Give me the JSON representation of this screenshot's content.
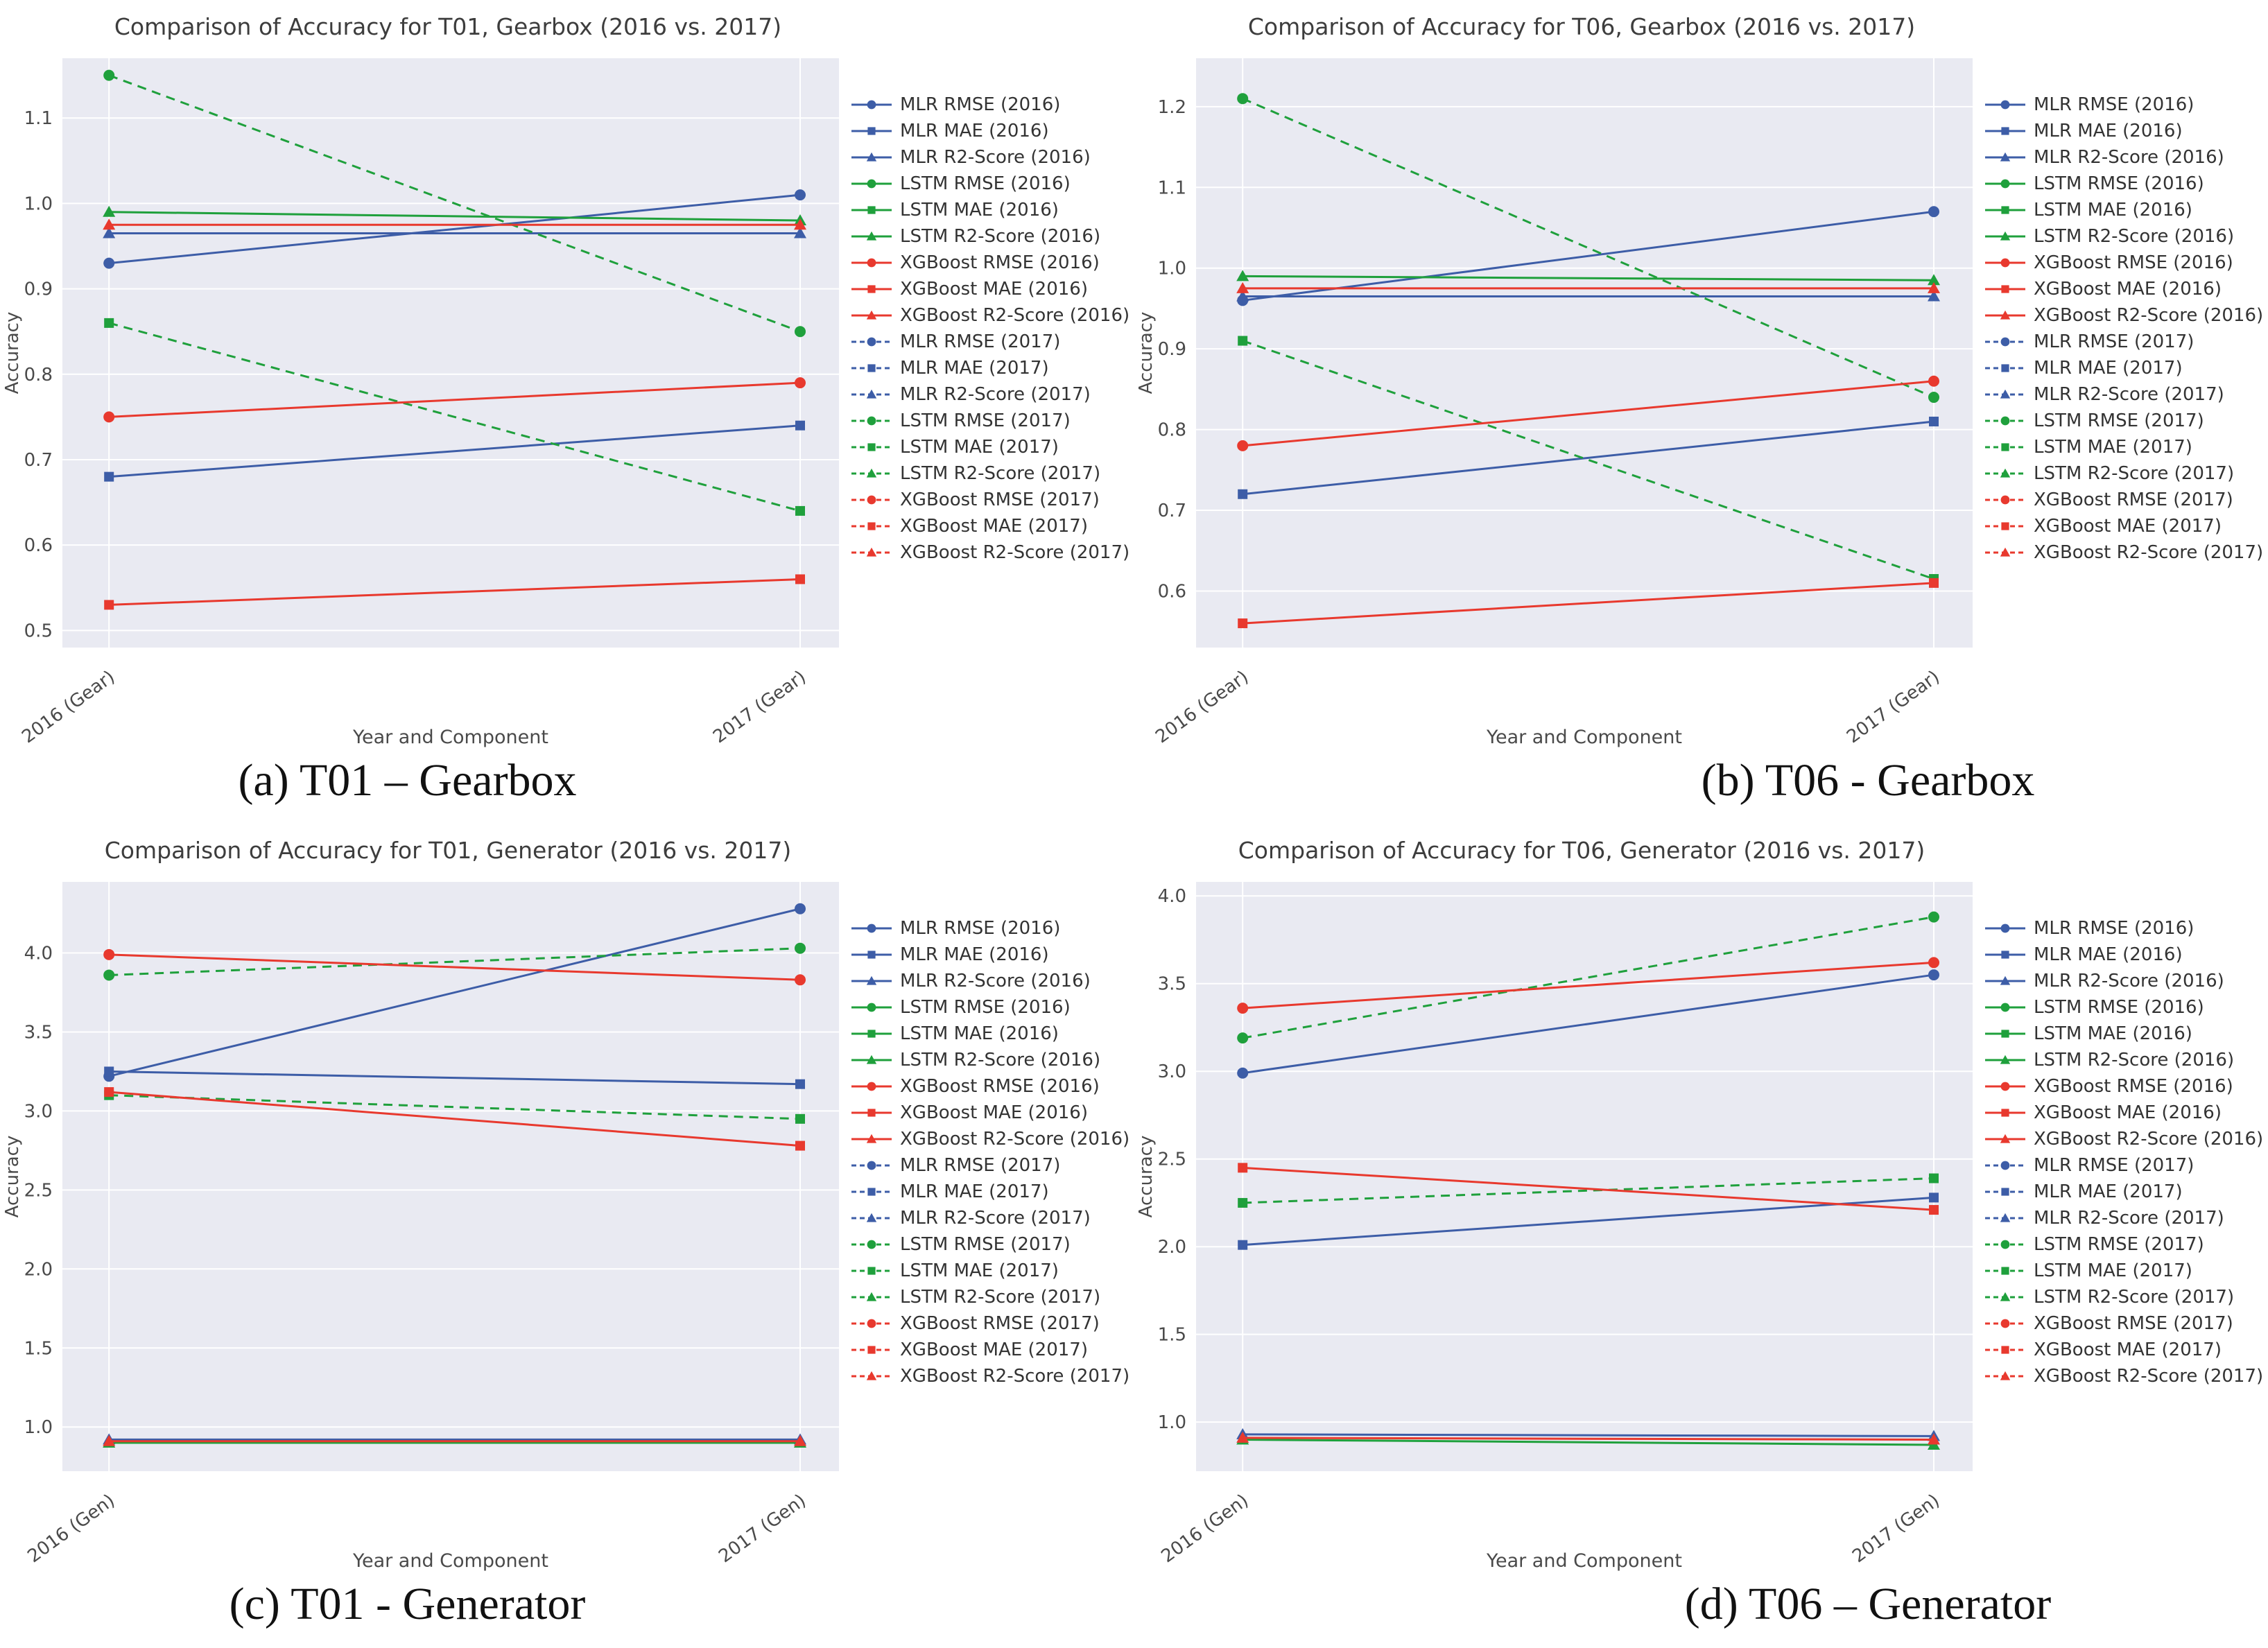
{
  "colors": {
    "mlr_blue": "#3d5da7",
    "lstm_green": "#1fa03c",
    "xgboost_red": "#e8392e",
    "plot_bg": "#e9eaf2",
    "grid": "#ffffff",
    "tick": "#4a4a4a",
    "title": "#3d3d3d"
  },
  "legend_entries": [
    {
      "label": "MLR RMSE (2016)",
      "color": "#3d5da7",
      "marker": "circle",
      "dash": false
    },
    {
      "label": "MLR MAE (2016)",
      "color": "#3d5da7",
      "marker": "square",
      "dash": false
    },
    {
      "label": "MLR R2-Score (2016)",
      "color": "#3d5da7",
      "marker": "triangle",
      "dash": false
    },
    {
      "label": "LSTM RMSE (2016)",
      "color": "#1fa03c",
      "marker": "circle",
      "dash": false
    },
    {
      "label": "LSTM MAE (2016)",
      "color": "#1fa03c",
      "marker": "square",
      "dash": false
    },
    {
      "label": "LSTM R2-Score (2016)",
      "color": "#1fa03c",
      "marker": "triangle",
      "dash": false
    },
    {
      "label": "XGBoost RMSE (2016)",
      "color": "#e8392e",
      "marker": "circle",
      "dash": false
    },
    {
      "label": "XGBoost MAE (2016)",
      "color": "#e8392e",
      "marker": "square",
      "dash": false
    },
    {
      "label": "XGBoost R2-Score (2016)",
      "color": "#e8392e",
      "marker": "triangle",
      "dash": false
    },
    {
      "label": "MLR RMSE (2017)",
      "color": "#3d5da7",
      "marker": "circle",
      "dash": true
    },
    {
      "label": "MLR MAE (2017)",
      "color": "#3d5da7",
      "marker": "square",
      "dash": true
    },
    {
      "label": "MLR R2-Score (2017)",
      "color": "#3d5da7",
      "marker": "triangle",
      "dash": true
    },
    {
      "label": "LSTM RMSE (2017)",
      "color": "#1fa03c",
      "marker": "circle",
      "dash": true
    },
    {
      "label": "LSTM MAE (2017)",
      "color": "#1fa03c",
      "marker": "square",
      "dash": true
    },
    {
      "label": "LSTM R2-Score (2017)",
      "color": "#1fa03c",
      "marker": "triangle",
      "dash": true
    },
    {
      "label": "XGBoost RMSE (2017)",
      "color": "#e8392e",
      "marker": "circle",
      "dash": true
    },
    {
      "label": "XGBoost MAE (2017)",
      "color": "#e8392e",
      "marker": "square",
      "dash": true
    },
    {
      "label": "XGBoost R2-Score (2017)",
      "color": "#e8392e",
      "marker": "triangle",
      "dash": true
    }
  ],
  "chart_data": [
    {
      "id": "a",
      "type": "line",
      "title": "Comparison of Accuracy for T01, Gearbox (2016 vs. 2017)",
      "caption": "(a) T01 – Gearbox",
      "xlabel": "Year and Component",
      "ylabel": "Accuracy",
      "x_categories": [
        "2016 (Gear)",
        "2017 (Gear)"
      ],
      "ylim": [
        0.48,
        1.17
      ],
      "yticks": [
        0.5,
        0.6,
        0.7,
        0.8,
        0.9,
        1.0,
        1.1
      ],
      "legend_position": "right",
      "grid": true,
      "series": [
        {
          "name": "MLR RMSE (2016)",
          "color": "#3d5da7",
          "marker": "circle",
          "dash": false,
          "values": [
            0.93,
            1.01
          ]
        },
        {
          "name": "MLR MAE (2016)",
          "color": "#3d5da7",
          "marker": "square",
          "dash": false,
          "values": [
            0.68,
            0.74
          ]
        },
        {
          "name": "MLR R2-Score (2016)",
          "color": "#3d5da7",
          "marker": "triangle",
          "dash": false,
          "values": [
            0.965,
            0.965
          ]
        },
        {
          "name": "LSTM RMSE (2017)",
          "color": "#1fa03c",
          "marker": "circle",
          "dash": true,
          "values": [
            1.15,
            0.85
          ]
        },
        {
          "name": "LSTM MAE (2017)",
          "color": "#1fa03c",
          "marker": "square",
          "dash": true,
          "values": [
            0.86,
            0.64
          ]
        },
        {
          "name": "LSTM R2-Score (2016)",
          "color": "#1fa03c",
          "marker": "triangle",
          "dash": false,
          "values": [
            0.99,
            0.98
          ]
        },
        {
          "name": "XGBoost RMSE (2016)",
          "color": "#e8392e",
          "marker": "circle",
          "dash": false,
          "values": [
            0.75,
            0.79
          ]
        },
        {
          "name": "XGBoost MAE (2016)",
          "color": "#e8392e",
          "marker": "square",
          "dash": false,
          "values": [
            0.53,
            0.56
          ]
        },
        {
          "name": "XGBoost R2-Score (2016)",
          "color": "#e8392e",
          "marker": "triangle",
          "dash": false,
          "values": [
            0.975,
            0.975
          ]
        }
      ]
    },
    {
      "id": "b",
      "type": "line",
      "title": "Comparison of Accuracy for T06, Gearbox (2016 vs. 2017)",
      "caption": "(b) T06 - Gearbox",
      "xlabel": "Year and Component",
      "ylabel": "Accuracy",
      "x_categories": [
        "2016 (Gear)",
        "2017 (Gear)"
      ],
      "ylim": [
        0.53,
        1.26
      ],
      "yticks": [
        0.6,
        0.7,
        0.8,
        0.9,
        1.0,
        1.1,
        1.2
      ],
      "legend_position": "right",
      "grid": true,
      "series": [
        {
          "name": "MLR RMSE (2016)",
          "color": "#3d5da7",
          "marker": "circle",
          "dash": false,
          "values": [
            0.96,
            1.07
          ]
        },
        {
          "name": "MLR MAE (2016)",
          "color": "#3d5da7",
          "marker": "square",
          "dash": false,
          "values": [
            0.72,
            0.81
          ]
        },
        {
          "name": "MLR R2-Score (2016)",
          "color": "#3d5da7",
          "marker": "triangle",
          "dash": false,
          "values": [
            0.965,
            0.965
          ]
        },
        {
          "name": "LSTM RMSE (2017)",
          "color": "#1fa03c",
          "marker": "circle",
          "dash": true,
          "values": [
            1.21,
            0.84
          ]
        },
        {
          "name": "LSTM MAE (2017)",
          "color": "#1fa03c",
          "marker": "square",
          "dash": true,
          "values": [
            0.91,
            0.615
          ]
        },
        {
          "name": "LSTM R2-Score (2016)",
          "color": "#1fa03c",
          "marker": "triangle",
          "dash": false,
          "values": [
            0.99,
            0.985
          ]
        },
        {
          "name": "XGBoost RMSE (2016)",
          "color": "#e8392e",
          "marker": "circle",
          "dash": false,
          "values": [
            0.78,
            0.86
          ]
        },
        {
          "name": "XGBoost MAE (2016)",
          "color": "#e8392e",
          "marker": "square",
          "dash": false,
          "values": [
            0.56,
            0.61
          ]
        },
        {
          "name": "XGBoost R2-Score (2016)",
          "color": "#e8392e",
          "marker": "triangle",
          "dash": false,
          "values": [
            0.975,
            0.975
          ]
        }
      ]
    },
    {
      "id": "c",
      "type": "line",
      "title": "Comparison of Accuracy for T01, Generator (2016 vs. 2017)",
      "caption": "(c) T01 - Generator",
      "xlabel": "Year and Component",
      "ylabel": "Accuracy",
      "x_categories": [
        "2016 (Gen)",
        "2017 (Gen)"
      ],
      "ylim": [
        0.72,
        4.45
      ],
      "yticks": [
        1.0,
        1.5,
        2.0,
        2.5,
        3.0,
        3.5,
        4.0
      ],
      "legend_position": "right",
      "grid": true,
      "series": [
        {
          "name": "MLR RMSE (2016)",
          "color": "#3d5da7",
          "marker": "circle",
          "dash": false,
          "values": [
            3.22,
            4.28
          ]
        },
        {
          "name": "MLR MAE (2016)",
          "color": "#3d5da7",
          "marker": "square",
          "dash": false,
          "values": [
            3.25,
            3.17
          ]
        },
        {
          "name": "MLR R2-Score (2016)",
          "color": "#3d5da7",
          "marker": "triangle",
          "dash": false,
          "values": [
            0.92,
            0.92
          ]
        },
        {
          "name": "LSTM RMSE (2017)",
          "color": "#1fa03c",
          "marker": "circle",
          "dash": true,
          "values": [
            3.86,
            4.03
          ]
        },
        {
          "name": "LSTM MAE (2017)",
          "color": "#1fa03c",
          "marker": "square",
          "dash": true,
          "values": [
            3.1,
            2.95
          ]
        },
        {
          "name": "LSTM R2-Score (2016)",
          "color": "#1fa03c",
          "marker": "triangle",
          "dash": false,
          "values": [
            0.9,
            0.9
          ]
        },
        {
          "name": "XGBoost RMSE (2016)",
          "color": "#e8392e",
          "marker": "circle",
          "dash": false,
          "values": [
            3.99,
            3.83
          ]
        },
        {
          "name": "XGBoost MAE (2016)",
          "color": "#e8392e",
          "marker": "square",
          "dash": false,
          "values": [
            3.12,
            2.78
          ]
        },
        {
          "name": "XGBoost R2-Score (2016)",
          "color": "#e8392e",
          "marker": "triangle",
          "dash": false,
          "values": [
            0.91,
            0.91
          ]
        }
      ]
    },
    {
      "id": "d",
      "type": "line",
      "title": "Comparison of Accuracy for T06, Generator (2016 vs. 2017)",
      "caption": "(d) T06 – Generator",
      "xlabel": "Year and Component",
      "ylabel": "Accuracy",
      "x_categories": [
        "2016 (Gen)",
        "2017 (Gen)"
      ],
      "ylim": [
        0.72,
        4.08
      ],
      "yticks": [
        1.0,
        1.5,
        2.0,
        2.5,
        3.0,
        3.5,
        4.0
      ],
      "legend_position": "right",
      "grid": true,
      "series": [
        {
          "name": "MLR RMSE (2016)",
          "color": "#3d5da7",
          "marker": "circle",
          "dash": false,
          "values": [
            2.99,
            3.55
          ]
        },
        {
          "name": "MLR MAE (2016)",
          "color": "#3d5da7",
          "marker": "square",
          "dash": false,
          "values": [
            2.01,
            2.28
          ]
        },
        {
          "name": "MLR R2-Score (2016)",
          "color": "#3d5da7",
          "marker": "triangle",
          "dash": false,
          "values": [
            0.93,
            0.92
          ]
        },
        {
          "name": "LSTM RMSE (2017)",
          "color": "#1fa03c",
          "marker": "circle",
          "dash": true,
          "values": [
            3.19,
            3.88
          ]
        },
        {
          "name": "LSTM MAE (2017)",
          "color": "#1fa03c",
          "marker": "square",
          "dash": true,
          "values": [
            2.25,
            2.39
          ]
        },
        {
          "name": "LSTM R2-Score (2016)",
          "color": "#1fa03c",
          "marker": "triangle",
          "dash": false,
          "values": [
            0.9,
            0.87
          ]
        },
        {
          "name": "XGBoost RMSE (2016)",
          "color": "#e8392e",
          "marker": "circle",
          "dash": false,
          "values": [
            3.36,
            3.62
          ]
        },
        {
          "name": "XGBoost MAE (2016)",
          "color": "#e8392e",
          "marker": "square",
          "dash": false,
          "values": [
            2.45,
            2.21
          ]
        },
        {
          "name": "XGBoost R2-Score (2016)",
          "color": "#e8392e",
          "marker": "triangle",
          "dash": false,
          "values": [
            0.91,
            0.9
          ]
        }
      ]
    }
  ]
}
